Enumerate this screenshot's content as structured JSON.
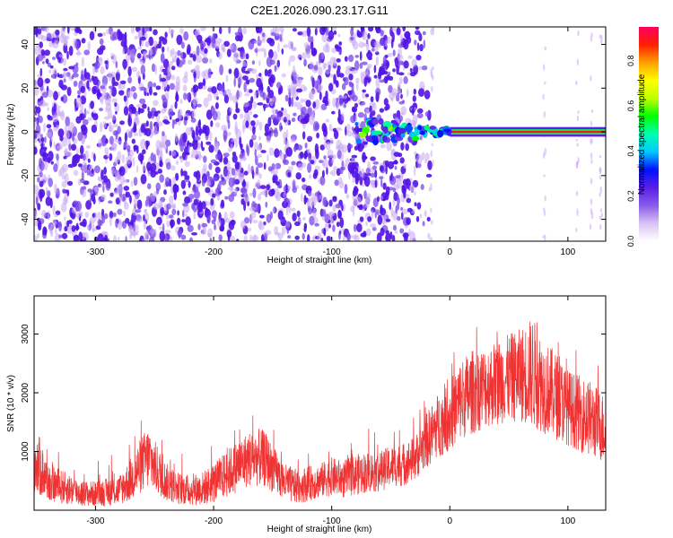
{
  "figure": {
    "title": "C2E1.2026.090.23.17.G11"
  },
  "chart_data": [
    {
      "type": "heatmap",
      "title": "",
      "xlabel": "Height of straight line (km)",
      "ylabel": "Frequency (Hz)",
      "xlim": [
        -352,
        132
      ],
      "ylim": [
        -50,
        48
      ],
      "x_ticks": [
        -300,
        -200,
        -100,
        0,
        100
      ],
      "y_ticks": [
        -40,
        -20,
        0,
        20,
        40
      ],
      "colorbar": {
        "label": "Normalized spectral amplitude",
        "range": [
          0,
          0.95
        ],
        "ticks": [
          0.0,
          0.2,
          0.4,
          0.6,
          0.8
        ],
        "colors": [
          "#ffffff",
          "#d9c2f5",
          "#8a5ce8",
          "#5a1fe8",
          "#0010ff",
          "#00c8ff",
          "#00ffb0",
          "#00ff00",
          "#c0ff00",
          "#ffff00",
          "#ffa000",
          "#ff2000",
          "#ff0060"
        ]
      },
      "features": {
        "noise_region_x": [
          -352,
          -40
        ],
        "signal_line_frequency": 0,
        "signal_line_x": [
          -80,
          132
        ],
        "signal_line_amplitude": 0.9
      },
      "grid": false,
      "legend": "right"
    },
    {
      "type": "line",
      "title": "",
      "xlabel": "Height of straight line (km)",
      "ylabel": "SNR (10 * v/v)",
      "xlim": [
        -352,
        132
      ],
      "ylim": [
        0,
        3650
      ],
      "x_ticks": [
        -300,
        -200,
        -100,
        0,
        100
      ],
      "y_ticks": [
        1000,
        2000,
        3000
      ],
      "color": "#f03232",
      "x": [
        -350,
        -340,
        -330,
        -320,
        -310,
        -300,
        -290,
        -280,
        -270,
        -260,
        -255,
        -250,
        -240,
        -230,
        -220,
        -210,
        -200,
        -190,
        -180,
        -170,
        -160,
        -155,
        -150,
        -140,
        -130,
        -120,
        -110,
        -100,
        -90,
        -80,
        -70,
        -60,
        -50,
        -40,
        -30,
        -20,
        -10,
        0,
        10,
        20,
        30,
        40,
        50,
        60,
        70,
        80,
        90,
        100,
        110,
        120,
        130
      ],
      "envelope_low": [
        250,
        150,
        100,
        80,
        60,
        60,
        70,
        80,
        150,
        300,
        350,
        300,
        150,
        100,
        80,
        80,
        120,
        200,
        300,
        400,
        400,
        380,
        300,
        150,
        100,
        150,
        200,
        250,
        200,
        250,
        300,
        300,
        400,
        400,
        500,
        700,
        900,
        1000,
        1200,
        1300,
        1400,
        1450,
        1500,
        1500,
        1400,
        1300,
        1200,
        1100,
        1000,
        900,
        800
      ],
      "envelope_high": [
        1400,
        800,
        700,
        600,
        500,
        500,
        550,
        600,
        900,
        1300,
        1450,
        1200,
        800,
        650,
        600,
        650,
        800,
        1000,
        1200,
        1350,
        1400,
        1300,
        1100,
        800,
        700,
        750,
        800,
        900,
        850,
        950,
        1000,
        1000,
        1100,
        1150,
        1250,
        1650,
        2000,
        2200,
        2600,
        2750,
        2800,
        2900,
        3000,
        3100,
        3300,
        2900,
        2700,
        2400,
        2300,
        2200,
        2000
      ],
      "grid": false
    }
  ]
}
